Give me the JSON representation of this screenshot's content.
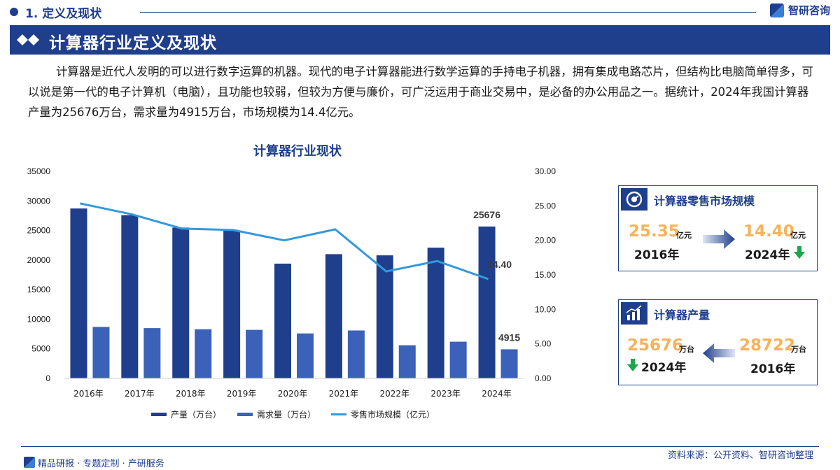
{
  "top": {
    "section_title": "1. 定义及现状",
    "brand": "智研咨询"
  },
  "heading": {
    "title": "计算器行业定义及现状"
  },
  "intro": "计算器是近代人发明的可以进行数字运算的机器。现代的电子计算器能进行数学运算的手持电子机器，拥有集成电路芯片，但结构比电脑简单得多，可以说是第一代的电子计算机（电脑），且功能也较弱，但较为方便与廉价，可广泛运用于商业交易中，是必备的办公用品之一。据统计，2024年我国计算器产量为25676万台，需求量为4915万台，市场规模为14.4亿元。",
  "chart_data": {
    "type": "bar",
    "title": "计算器行业现状",
    "categories": [
      "2016年",
      "2017年",
      "2018年",
      "2019年",
      "2020年",
      "2021年",
      "2022年",
      "2023年",
      "2024年"
    ],
    "series": [
      {
        "name": "产量（万台）",
        "kind": "bar",
        "axis": "left",
        "color": "#1f3e8c",
        "values": [
          28722,
          27600,
          25500,
          25000,
          19400,
          21000,
          20800,
          22100,
          25676
        ]
      },
      {
        "name": "需求量（万台）",
        "kind": "bar",
        "axis": "left",
        "color": "#3b62b8",
        "values": [
          8700,
          8500,
          8300,
          8200,
          7600,
          8100,
          5600,
          6200,
          4915
        ]
      },
      {
        "name": "零售市场规模（亿元）",
        "kind": "line",
        "axis": "right",
        "color": "#3399dd",
        "values": [
          25.35,
          23.8,
          21.7,
          21.5,
          20.0,
          21.6,
          15.5,
          17.0,
          14.4
        ]
      }
    ],
    "left_axis": {
      "ylim": [
        0,
        35000
      ],
      "ticks": [
        "0",
        "5000",
        "10000",
        "15000",
        "20000",
        "25000",
        "30000",
        "35000"
      ]
    },
    "right_axis": {
      "ylim": [
        0,
        30
      ],
      "ticks": [
        "0.00",
        "5.00",
        "10.00",
        "15.00",
        "20.00",
        "25.00",
        "30.00"
      ]
    },
    "data_labels": [
      {
        "series": 0,
        "index": 8,
        "text": "25676"
      },
      {
        "series": 1,
        "index": 8,
        "text": "4915"
      },
      {
        "series": 2,
        "index": 8,
        "text": "14.40"
      }
    ],
    "grid": false,
    "legend_position": "bottom"
  },
  "card_market": {
    "title": "计算器零售市场规模",
    "from_value": "25.35",
    "from_unit": "亿元",
    "from_year": "2016年",
    "to_value": "14.40",
    "to_unit": "亿元",
    "to_year": "2024年"
  },
  "card_output": {
    "title": "计算器产量",
    "from_value": "28722",
    "from_unit": "万台",
    "from_year": "2016年",
    "to_value": "25676",
    "to_unit": "万台",
    "to_year": "2024年"
  },
  "footer": {
    "source": "资料来源：公开资料、智研咨询整理",
    "tagline": "精品研报 · 专题定制 · 产研服务"
  },
  "colors": {
    "primary": "#1f3e8c",
    "accent_orange": "#f7b25a",
    "line_blue": "#3399dd",
    "down_green": "#1aa64a"
  }
}
